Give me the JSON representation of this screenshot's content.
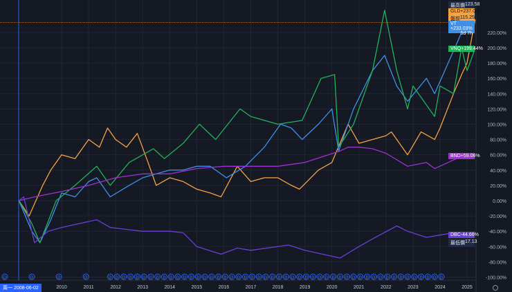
{
  "chart_data": {
    "type": "line",
    "ylabel": "",
    "xlabel": "",
    "ylim": [
      -100,
      250
    ],
    "x_ticks": [
      "2010",
      "2011",
      "2012",
      "2013",
      "2014",
      "2015",
      "2016",
      "2017",
      "2018",
      "2019",
      "2020",
      "2021",
      "2022",
      "2023",
      "2024",
      "2025"
    ],
    "y_ticks": [
      "220.00%",
      "200.00%",
      "180.00%",
      "160.00%",
      "140.00%",
      "120.00%",
      "100.00%",
      "80.00%",
      "60.00%",
      "40.00%",
      "20.00%",
      "0.00%",
      "-20.00%",
      "-40.00%",
      "-60.00%",
      "-80.00%",
      "-100.00%"
    ],
    "grid": true,
    "cursor_date_label": "周一 2008-06-02",
    "series": [
      {
        "name": "GLD",
        "color": "#f5a445",
        "last_label": "+237.06%",
        "x": [
          2008.42,
          2008.8,
          2009.3,
          2009.6,
          2010,
          2010.5,
          2011,
          2011.4,
          2011.7,
          2012,
          2012.4,
          2012.8,
          2013.2,
          2013.5,
          2014,
          2014.5,
          2015,
          2015.5,
          2015.9,
          2016.5,
          2017,
          2017.5,
          2018,
          2018.5,
          2018.8,
          2019.5,
          2020,
          2020.6,
          2021,
          2021.5,
          2022,
          2022.2,
          2022.8,
          2023.3,
          2023.8,
          2024,
          2024.5,
          2024.8,
          2025,
          2025.3
        ],
        "y": [
          0,
          -20,
          20,
          40,
          60,
          55,
          80,
          70,
          95,
          80,
          70,
          88,
          50,
          20,
          30,
          25,
          15,
          10,
          5,
          45,
          25,
          30,
          30,
          20,
          15,
          40,
          50,
          100,
          75,
          80,
          85,
          90,
          60,
          90,
          80,
          95,
          140,
          165,
          180,
          237
        ]
      },
      {
        "name": "VT",
        "color": "#3f90e6",
        "last_label": "+233.03%",
        "x": [
          2008.42,
          2008.9,
          2009.2,
          2009.6,
          2010,
          2010.5,
          2011,
          2011.3,
          2011.8,
          2012.5,
          2013,
          2013.5,
          2014,
          2014.5,
          2015,
          2015.5,
          2016.1,
          2016.8,
          2017.5,
          2018.1,
          2018.5,
          2018.9,
          2019.5,
          2020,
          2020.25,
          2020.8,
          2021.5,
          2021.95,
          2022.4,
          2022.8,
          2023.5,
          2023.8,
          2024.3,
          2024.8,
          2025,
          2025.2,
          2025.3
        ],
        "y": [
          0,
          -40,
          -55,
          -25,
          10,
          5,
          25,
          30,
          5,
          20,
          30,
          35,
          40,
          40,
          45,
          45,
          30,
          45,
          70,
          100,
          95,
          80,
          100,
          120,
          65,
          120,
          170,
          190,
          150,
          130,
          160,
          140,
          180,
          220,
          246,
          230,
          233
        ]
      },
      {
        "name": "VNQ",
        "color": "#23b25c",
        "last_label": "+199.44%",
        "x": [
          2008.42,
          2008.9,
          2009.2,
          2009.8,
          2010.5,
          2011.3,
          2011.8,
          2012.5,
          2013.4,
          2013.8,
          2014.5,
          2015.1,
          2015.7,
          2016.6,
          2017,
          2018,
          2018.9,
          2019.6,
          2020.1,
          2020.25,
          2020.8,
          2021.5,
          2021.95,
          2022.4,
          2022.8,
          2023,
          2023.8,
          2024,
          2024.5,
          2024.8,
          2025,
          2025.3
        ],
        "y": [
          0,
          -30,
          -55,
          0,
          20,
          45,
          20,
          50,
          68,
          55,
          75,
          100,
          80,
          120,
          110,
          100,
          105,
          160,
          165,
          70,
          100,
          170,
          249,
          170,
          120,
          150,
          110,
          150,
          140,
          200,
          170,
          199
        ]
      },
      {
        "name": "BND",
        "color": "#a22fd6",
        "last_label": "+59.06%",
        "x": [
          2008.42,
          2009,
          2010,
          2011,
          2012,
          2013,
          2014,
          2015,
          2016,
          2017,
          2018,
          2019,
          2020.3,
          2020.6,
          2021,
          2021.5,
          2022,
          2022.8,
          2023.5,
          2023.8,
          2024.3,
          2024.8,
          2025.3
        ],
        "y": [
          0,
          5,
          12,
          20,
          30,
          35,
          35,
          42,
          45,
          45,
          45,
          50,
          65,
          70,
          70,
          68,
          62,
          45,
          50,
          42,
          50,
          58,
          59
        ]
      },
      {
        "name": "DBC",
        "color": "#6a3fd8",
        "last_label": "-44.66%",
        "x": [
          2008.42,
          2008.6,
          2009,
          2009.5,
          2010,
          2011.3,
          2011.8,
          2012.5,
          2013,
          2014,
          2014.5,
          2015,
          2015.9,
          2016.5,
          2017,
          2018.4,
          2019,
          2020.3,
          2021,
          2021.5,
          2022.4,
          2022.8,
          2023.5,
          2024,
          2024.5,
          2025.3
        ],
        "y": [
          0,
          5,
          -55,
          -40,
          -35,
          -25,
          -35,
          -38,
          -40,
          -40,
          -42,
          -60,
          -70,
          -62,
          -65,
          -58,
          -65,
          -75,
          -60,
          -50,
          -33,
          -40,
          -48,
          -45,
          -42,
          -44.66
        ]
      }
    ],
    "annotations": {
      "high_label": "最高價",
      "high_value": "123.58",
      "premarket_label": "盤前",
      "premarket_value": "115.25",
      "countdown": "5d 7h",
      "low_label": "最低價",
      "low_value": "17.13",
      "dividend_marker": "D"
    }
  }
}
